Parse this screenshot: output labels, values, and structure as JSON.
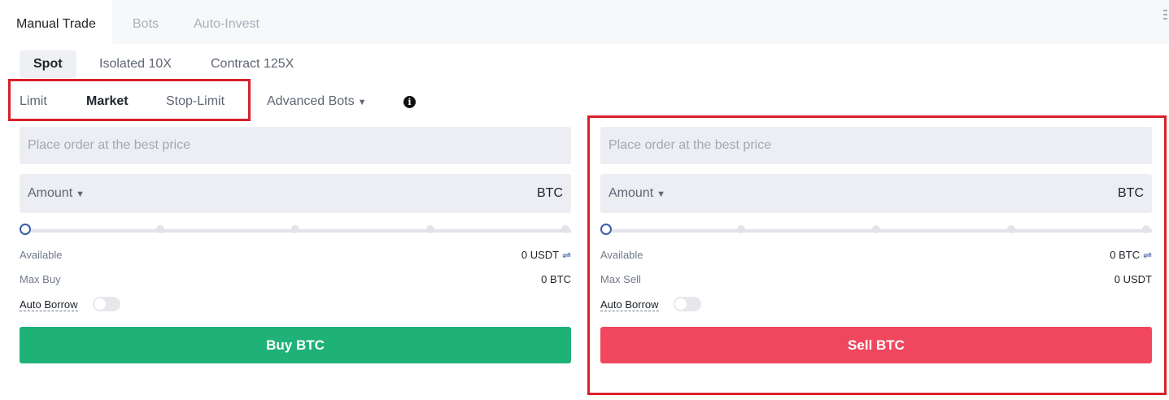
{
  "tabs": [
    {
      "label": "Manual Trade",
      "active": true
    },
    {
      "label": "Bots"
    },
    {
      "label": "Auto-Invest"
    }
  ],
  "market_tabs": [
    {
      "label": "Spot",
      "active": true
    },
    {
      "label": "Isolated 10X"
    },
    {
      "label": "Contract 125X"
    }
  ],
  "order_types": [
    {
      "label": "Limit"
    },
    {
      "label": "Market",
      "active": true
    },
    {
      "label": "Stop-Limit"
    }
  ],
  "advanced_bots": "Advanced Bots",
  "buy": {
    "price_placeholder": "Place order at the best price",
    "amount_label": "Amount",
    "amount_unit": "BTC",
    "slider_percent": 0,
    "available_label": "Available",
    "available_value": "0 USDT",
    "max_label": "Max Buy",
    "max_value": "0 BTC",
    "auto_borrow": "Auto Borrow",
    "auto_borrow_on": false,
    "button": "Buy BTC",
    "color": "#1fb277"
  },
  "sell": {
    "price_placeholder": "Place order at the best price",
    "amount_label": "Amount",
    "amount_unit": "BTC",
    "slider_percent": 0,
    "available_label": "Available",
    "available_value": "0 BTC",
    "max_label": "Max Sell",
    "max_value": "0 USDT",
    "auto_borrow": "Auto Borrow",
    "auto_borrow_on": false,
    "button": "Sell BTC",
    "color": "#f0475f"
  },
  "highlight_color": "#d9202a"
}
